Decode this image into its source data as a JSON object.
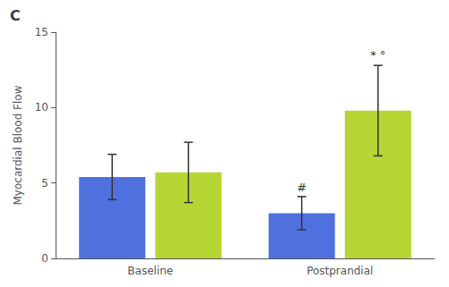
{
  "chart_data": {
    "type": "bar",
    "title": "C",
    "categories": [
      "Baseline",
      "Postprandial"
    ],
    "series": [
      {
        "values": [
          5.4,
          3.0
        ],
        "errors": [
          1.5,
          1.1
        ]
      },
      {
        "values": [
          5.7,
          9.8
        ],
        "errors": [
          2.0,
          3.0
        ]
      }
    ],
    "ylabel": "Myocardial Blood Flow",
    "ylim": [
      0,
      15
    ],
    "yticks": [
      0,
      5,
      10,
      15
    ],
    "grid": false,
    "annotations": [
      {
        "text": "#",
        "category": "Postprandial",
        "bar": 0,
        "y": 4.3
      },
      {
        "text": "* °",
        "category": "Postprandial",
        "bar": 1,
        "y": 13.1
      }
    ]
  }
}
